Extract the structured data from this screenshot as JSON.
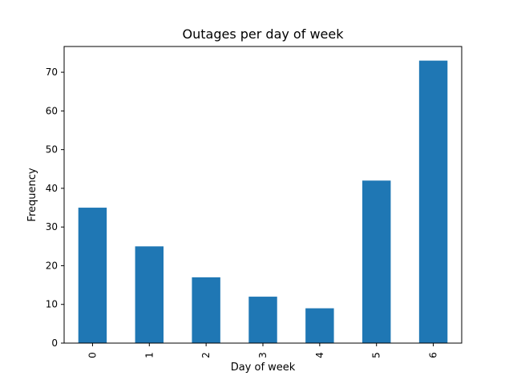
{
  "chart_data": {
    "type": "bar",
    "title": "Outages per day of week",
    "xlabel": "Day of week",
    "ylabel": "Frequency",
    "categories": [
      "0",
      "1",
      "2",
      "3",
      "4",
      "5",
      "6"
    ],
    "values": [
      35,
      25,
      17,
      12,
      9,
      42,
      73
    ],
    "ylim": [
      0,
      76.65
    ],
    "yticks": [
      "0",
      "10",
      "20",
      "30",
      "40",
      "50",
      "60",
      "70"
    ],
    "grid": false,
    "bar_color": "#1f77b4"
  }
}
